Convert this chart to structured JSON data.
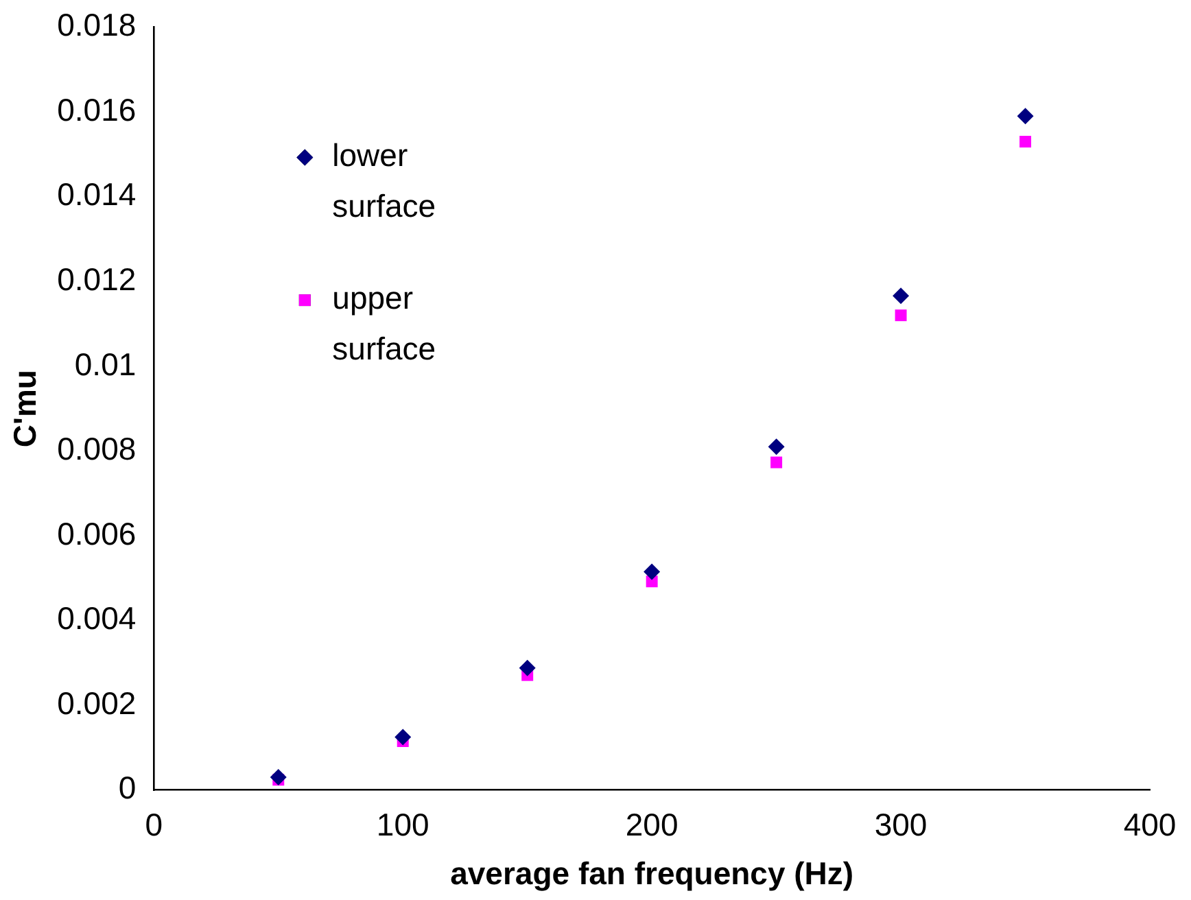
{
  "chart_data": {
    "type": "scatter",
    "xlabel": "average fan frequency (Hz)",
    "ylabel": "C'mu",
    "x": [
      50,
      100,
      150,
      200,
      250,
      300,
      350
    ],
    "series": [
      {
        "name": "lower surface",
        "color": "#000080",
        "marker": "diamond",
        "values": [
          0.0003,
          0.00125,
          0.00288,
          0.00515,
          0.0081,
          0.01166,
          0.0159
        ]
      },
      {
        "name": "upper surface",
        "color": "#ff00ff",
        "marker": "square",
        "values": [
          0.00024,
          0.00115,
          0.00271,
          0.00492,
          0.00773,
          0.0112,
          0.0153
        ]
      }
    ],
    "xlim": [
      0,
      400
    ],
    "xticks": [
      0,
      100,
      200,
      300,
      400
    ],
    "ylim": [
      0,
      0.018
    ],
    "yticks": [
      0,
      0.002,
      0.004,
      0.006,
      0.008,
      0.01,
      0.012,
      0.014,
      0.016,
      0.018
    ],
    "grid": false,
    "legend": "top left"
  }
}
